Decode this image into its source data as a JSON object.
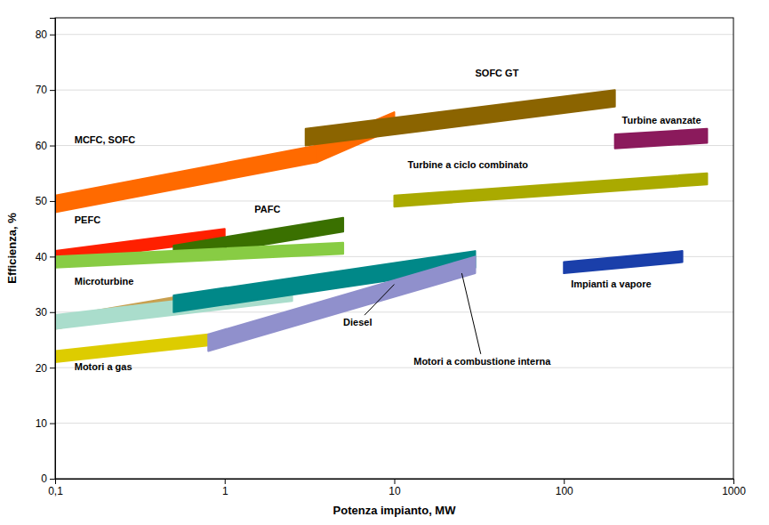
{
  "chart_data": {
    "type": "band",
    "xlabel": "Potenza impianto, MW",
    "ylabel": "Efficienza, %",
    "log": "x",
    "grid": "y",
    "xlim": [
      0.1,
      1000
    ],
    "ylim": [
      0,
      83
    ],
    "xticks": [
      {
        "value": 0.1,
        "label": "0,1"
      },
      1,
      10,
      100,
      1000
    ],
    "yticks": [
      0,
      10,
      20,
      30,
      40,
      50,
      60,
      70,
      80
    ],
    "series": [
      {
        "color": "#ff6a00",
        "x": [
          0.1,
          3.5
        ],
        "y_lo": [
          48,
          57
        ],
        "y_hi": [
          51,
          60
        ]
      },
      {
        "color": "#ff6a00",
        "x": [
          3.5,
          7
        ],
        "y_lo": [
          57,
          61
        ],
        "y_hi": [
          60,
          64
        ]
      },
      {
        "color": "#ff6a00",
        "x": [
          7,
          10
        ],
        "y_lo": [
          61,
          63
        ],
        "y_hi": [
          64,
          66
        ]
      },
      {
        "color": "#8B6400",
        "x": [
          3,
          200
        ],
        "y_lo": [
          60,
          67
        ],
        "y_hi": [
          63,
          70
        ]
      },
      {
        "color": "#8B1A5C",
        "x": [
          200,
          700
        ],
        "y_lo": [
          59.5,
          60.5
        ],
        "y_hi": [
          62,
          63
        ]
      },
      {
        "color": "#aaaa00",
        "x": [
          10,
          700
        ],
        "y_lo": [
          49,
          53
        ],
        "y_hi": [
          51,
          55
        ]
      },
      {
        "color": "#ff2000",
        "x": [
          0.1,
          1
        ],
        "y_lo": [
          39,
          43
        ],
        "y_hi": [
          41,
          45
        ]
      },
      {
        "color": "#3a7000",
        "x": [
          0.5,
          5
        ],
        "y_lo": [
          39.5,
          44.5
        ],
        "y_hi": [
          42,
          47
        ]
      },
      {
        "color": "#88cc44",
        "x": [
          0.1,
          5
        ],
        "y_lo": [
          38,
          40.5
        ],
        "y_hi": [
          40,
          42.5
        ]
      },
      {
        "color": "#c8a050",
        "x": [
          0.1,
          0.9
        ],
        "y_lo": [
          27,
          32
        ],
        "y_hi": [
          29,
          34
        ]
      },
      {
        "color": "#aaddcc",
        "x": [
          0.1,
          2.5
        ],
        "y_lo": [
          27,
          32
        ],
        "y_hi": [
          29.5,
          34.5
        ]
      },
      {
        "color": "#008888",
        "x": [
          0.5,
          30
        ],
        "y_lo": [
          30,
          38
        ],
        "y_hi": [
          33,
          41
        ]
      },
      {
        "color": "#ddcc00",
        "x": [
          0.1,
          0.8
        ],
        "y_lo": [
          21,
          24
        ],
        "y_hi": [
          23,
          26
        ]
      },
      {
        "color": "#9090cc",
        "x": [
          0.8,
          30
        ],
        "y_lo": [
          23,
          37
        ],
        "y_hi": [
          26,
          40
        ]
      },
      {
        "color": "#1a3faa",
        "x": [
          100,
          500
        ],
        "y_lo": [
          37,
          39
        ],
        "y_hi": [
          39,
          41
        ]
      }
    ],
    "annotations": [
      {
        "text": "MCFC, SOFC",
        "x": 0.13,
        "y": 60
      },
      {
        "text": "SOFC GT",
        "x": 30,
        "y": 72
      },
      {
        "text": "Turbine avanzate",
        "x": 220,
        "y": 63.5
      },
      {
        "text": "Turbine a ciclo combinato",
        "x": 12,
        "y": 55.5
      },
      {
        "text": "PEFC",
        "x": 0.13,
        "y": 45.5
      },
      {
        "text": "PAFC",
        "x": 1.5,
        "y": 47.5
      },
      {
        "text": "Microturbine",
        "x": 0.13,
        "y": 34.5
      },
      {
        "text": "Motori a gas",
        "x": 0.13,
        "y": 19
      },
      {
        "text": "Impianti a vapore",
        "x": 110,
        "y": 34
      },
      {
        "text": "Diesel",
        "x": 5,
        "y": 28,
        "target_x": 10,
        "target_y": 35
      },
      {
        "text": "Motori a combustione interna",
        "x": 13,
        "y": 21,
        "target_x": 25,
        "target_y": 37
      }
    ]
  }
}
